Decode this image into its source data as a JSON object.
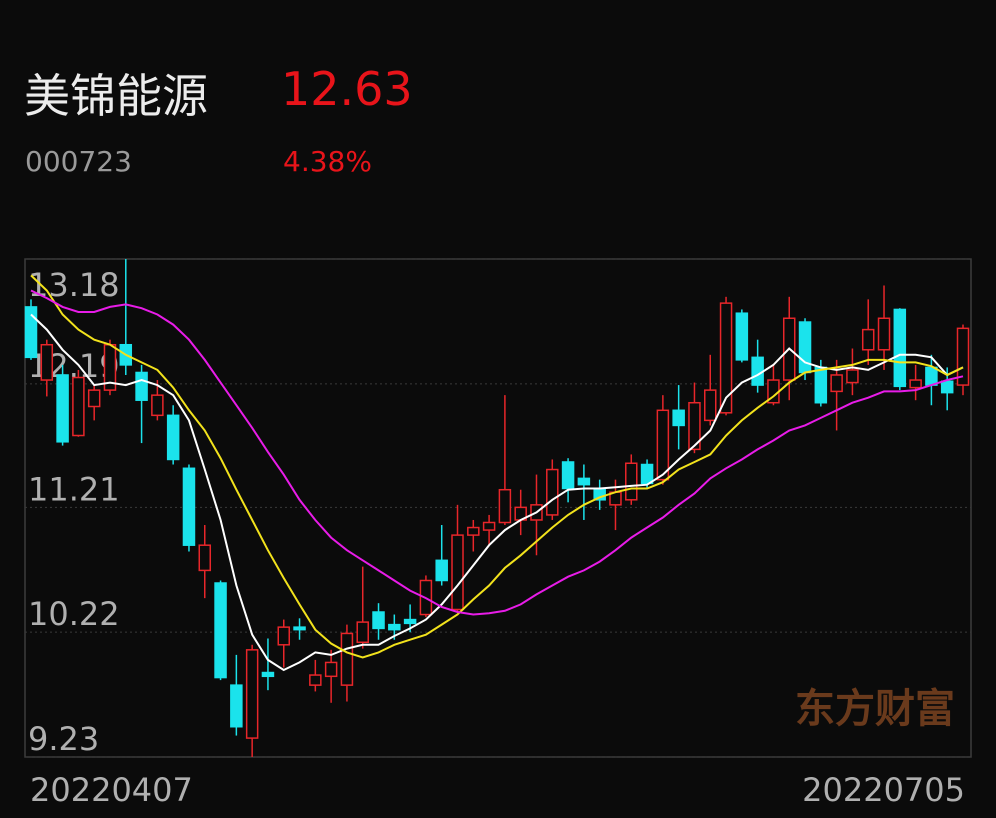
{
  "header": {
    "name": "美锦能源",
    "price": "12.63",
    "code": "000723",
    "change": "4.38%"
  },
  "chart_data": {
    "type": "candlestick",
    "categories": [
      "20220407",
      null,
      null,
      null,
      null,
      null,
      null,
      null,
      null,
      null,
      null,
      null,
      null,
      null,
      null,
      null,
      null,
      null,
      null,
      null,
      null,
      null,
      null,
      null,
      null,
      null,
      null,
      null,
      null,
      null,
      null,
      null,
      null,
      null,
      null,
      null,
      null,
      null,
      null,
      null,
      null,
      null,
      null,
      null,
      null,
      null,
      null,
      null,
      null,
      null,
      null,
      null,
      null,
      null,
      null,
      null,
      null,
      null,
      null,
      "20220705"
    ],
    "open": [
      12.8,
      12.22,
      12.26,
      11.78,
      12.01,
      12.14,
      12.5,
      12.28,
      11.94,
      11.94,
      11.52,
      10.71,
      10.61,
      9.8,
      9.38,
      9.9,
      10.12,
      10.26,
      9.8,
      9.87,
      9.8,
      10.14,
      10.38,
      10.28,
      10.32,
      10.36,
      10.79,
      10.4,
      10.99,
      11.03,
      11.09,
      11.11,
      11.11,
      11.15,
      11.57,
      11.44,
      11.35,
      11.23,
      11.27,
      11.55,
      11.43,
      11.98,
      11.67,
      11.9,
      11.96,
      12.75,
      12.4,
      12.04,
      12.22,
      12.68,
      12.32,
      12.13,
      12.2,
      12.46,
      12.46,
      12.78,
      12.16,
      12.32,
      12.21,
      12.18
    ],
    "high": [
      12.86,
      12.54,
      12.34,
      12.3,
      12.18,
      12.54,
      13.18,
      12.34,
      12.22,
      12.02,
      11.55,
      11.07,
      10.63,
      10.04,
      10.12,
      10.17,
      10.32,
      10.33,
      10.0,
      10.08,
      10.28,
      10.74,
      10.45,
      10.36,
      10.44,
      10.67,
      11.07,
      11.23,
      11.11,
      11.15,
      12.1,
      11.35,
      11.47,
      11.59,
      11.6,
      11.55,
      11.43,
      11.43,
      11.63,
      11.59,
      12.1,
      12.18,
      12.2,
      12.42,
      12.88,
      12.78,
      12.54,
      12.34,
      12.88,
      12.71,
      12.38,
      12.38,
      12.47,
      12.86,
      12.97,
      12.79,
      12.34,
      12.42,
      12.32,
      12.66
    ],
    "low": [
      12.38,
      12.09,
      11.7,
      11.77,
      11.9,
      12.1,
      12.26,
      11.72,
      11.9,
      11.55,
      10.86,
      10.49,
      9.84,
      9.4,
      9.23,
      9.76,
      9.94,
      10.16,
      9.75,
      9.66,
      9.67,
      10.09,
      10.16,
      10.16,
      10.22,
      10.34,
      10.59,
      10.38,
      10.86,
      10.91,
      11.07,
      10.99,
      10.83,
      11.11,
      11.25,
      11.11,
      11.19,
      11.03,
      11.23,
      11.36,
      11.39,
      11.67,
      11.64,
      11.86,
      11.94,
      12.36,
      12.12,
      12.02,
      12.06,
      12.22,
      12.01,
      11.82,
      12.1,
      12.34,
      12.3,
      12.14,
      12.06,
      12.02,
      11.98,
      12.1
    ],
    "close": [
      12.4,
      12.5,
      11.73,
      12.24,
      12.14,
      12.5,
      12.34,
      12.06,
      12.1,
      11.59,
      10.91,
      10.91,
      9.86,
      9.47,
      10.08,
      9.87,
      10.26,
      10.24,
      9.88,
      9.98,
      10.21,
      10.3,
      10.25,
      10.24,
      10.29,
      10.63,
      10.63,
      10.99,
      11.05,
      11.09,
      11.35,
      11.21,
      11.23,
      11.51,
      11.36,
      11.39,
      11.27,
      11.33,
      11.56,
      11.4,
      11.98,
      11.86,
      12.04,
      12.14,
      12.83,
      12.38,
      12.18,
      12.22,
      12.71,
      12.28,
      12.04,
      12.26,
      12.3,
      12.62,
      12.71,
      12.17,
      12.22,
      12.18,
      12.12,
      12.63
    ],
    "up_color": "#e8262a",
    "down_color": "#1be3ec",
    "lines": [
      {
        "color": "#ffffff",
        "values": [
          12.74,
          12.62,
          12.46,
          12.34,
          12.18,
          12.2,
          12.18,
          12.22,
          12.18,
          12.1,
          11.9,
          11.51,
          11.11,
          10.59,
          10.2,
          10.0,
          9.92,
          9.98,
          10.06,
          10.04,
          10.09,
          10.12,
          10.12,
          10.19,
          10.25,
          10.32,
          10.44,
          10.59,
          10.75,
          10.91,
          11.03,
          11.11,
          11.17,
          11.27,
          11.35,
          11.36,
          11.36,
          11.37,
          11.38,
          11.39,
          11.47,
          11.59,
          11.7,
          11.82,
          12.08,
          12.2,
          12.26,
          12.34,
          12.47,
          12.36,
          12.32,
          12.3,
          12.32,
          12.3,
          12.36,
          12.42,
          12.42,
          12.4,
          12.26,
          12.32
        ]
      },
      {
        "color": "#f2e21c",
        "values": [
          13.05,
          12.93,
          12.74,
          12.62,
          12.54,
          12.5,
          12.42,
          12.36,
          12.3,
          12.16,
          11.98,
          11.82,
          11.6,
          11.35,
          11.11,
          10.87,
          10.65,
          10.44,
          10.24,
          10.13,
          10.06,
          10.02,
          10.06,
          10.12,
          10.16,
          10.2,
          10.28,
          10.36,
          10.48,
          10.59,
          10.73,
          10.83,
          10.94,
          11.05,
          11.15,
          11.23,
          11.29,
          11.33,
          11.36,
          11.36,
          11.41,
          11.51,
          11.57,
          11.63,
          11.78,
          11.9,
          12.0,
          12.09,
          12.2,
          12.28,
          12.3,
          12.32,
          12.34,
          12.38,
          12.38,
          12.36,
          12.36,
          12.33,
          12.26,
          12.32
        ]
      },
      {
        "color": "#e81ce8",
        "values": [
          12.93,
          12.87,
          12.8,
          12.76,
          12.76,
          12.8,
          12.82,
          12.79,
          12.74,
          12.66,
          12.54,
          12.38,
          12.2,
          12.02,
          11.84,
          11.65,
          11.47,
          11.27,
          11.11,
          10.97,
          10.87,
          10.79,
          10.71,
          10.63,
          10.55,
          10.49,
          10.42,
          10.38,
          10.36,
          10.37,
          10.39,
          10.44,
          10.52,
          10.59,
          10.66,
          10.71,
          10.78,
          10.87,
          10.97,
          11.05,
          11.13,
          11.23,
          11.32,
          11.44,
          11.52,
          11.59,
          11.67,
          11.74,
          11.82,
          11.86,
          11.92,
          11.98,
          12.04,
          12.08,
          12.13,
          12.13,
          12.14,
          12.18,
          12.22,
          12.25
        ]
      }
    ],
    "ylim": [
      9.23,
      13.18
    ],
    "yticks": [
      9.23,
      10.22,
      11.21,
      12.19,
      13.18
    ],
    "grid": true,
    "watermark": "东方财富"
  }
}
